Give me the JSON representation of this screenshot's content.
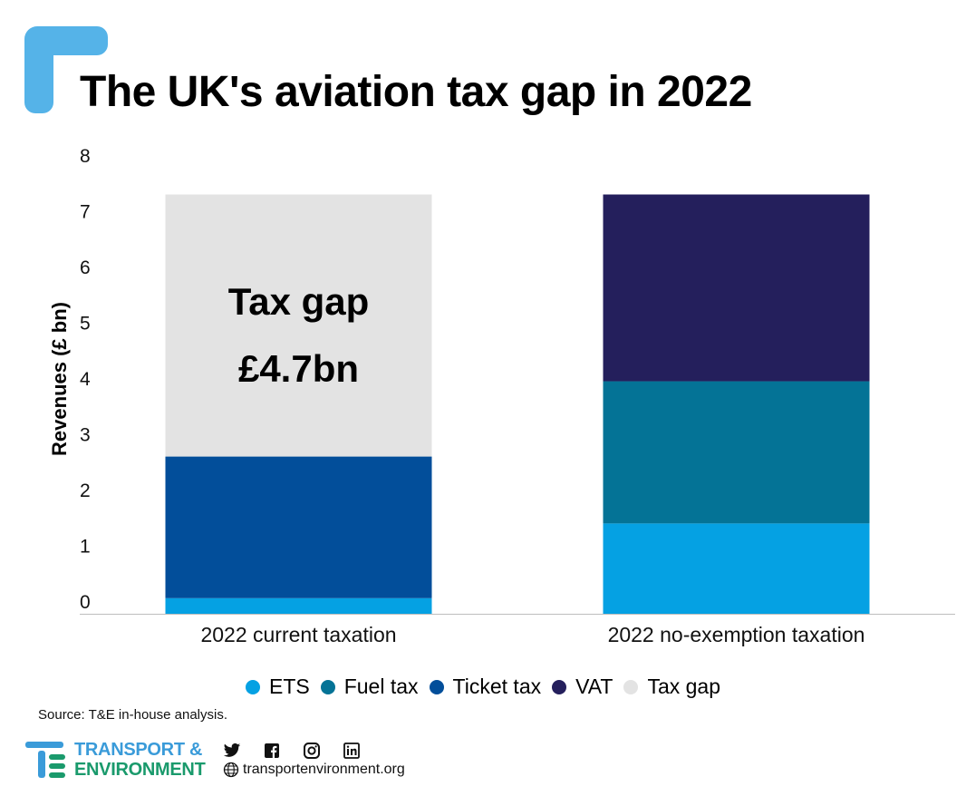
{
  "title": "The UK's aviation tax gap in 2022",
  "source": "Source: T&E in-house analysis.",
  "logo": {
    "line1": "TRANSPORT &",
    "line2": "ENVIRONMENT"
  },
  "website": "transportenvironment.org",
  "social_icons": [
    "twitter-icon",
    "facebook-icon",
    "instagram-icon",
    "linkedin-icon"
  ],
  "annotation": {
    "line1": "Tax gap",
    "line2": "£4.7bn"
  },
  "chart_data": {
    "type": "bar",
    "stacked": true,
    "title": "The UK's aviation tax gap in 2022",
    "xlabel": "",
    "ylabel": "Revenues (£ bn)",
    "ylim": [
      0,
      8
    ],
    "yticks": [
      0,
      1,
      2,
      3,
      4,
      5,
      6,
      7,
      8
    ],
    "grid": false,
    "legend_position": "bottom",
    "categories": [
      "2022 current taxation",
      "2022 no-exemption taxation"
    ],
    "series": [
      {
        "name": "ETS",
        "color": "#05a1e3",
        "values": [
          0.28,
          1.62
        ]
      },
      {
        "name": "Fuel tax",
        "color": "#047396",
        "values": [
          0,
          2.55
        ]
      },
      {
        "name": "Ticket tax",
        "color": "#024e9a",
        "values": [
          2.54,
          0
        ]
      },
      {
        "name": "VAT",
        "color": "#241f5c",
        "values": [
          0,
          3.35
        ]
      },
      {
        "name": "Tax gap",
        "color": "#e3e3e3",
        "values": [
          4.7,
          0
        ]
      }
    ]
  }
}
